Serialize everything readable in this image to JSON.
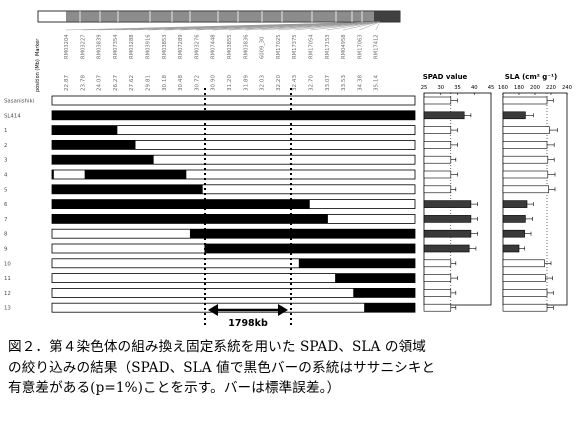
{
  "figure": {
    "side_labels": {
      "marker": "Marker",
      "position": "position (Mb)"
    },
    "markers": [
      {
        "name": "RM03204",
        "pos": "22.87"
      },
      {
        "name": "RM03227",
        "pos": "23.78"
      },
      {
        "name": "RM03839",
        "pos": "24.07"
      },
      {
        "name": "RM07354",
        "pos": "26.27"
      },
      {
        "name": "RM03288",
        "pos": "27.62"
      },
      {
        "name": "RM03916",
        "pos": "29.81"
      },
      {
        "name": "RM03853",
        "pos": "30.18"
      },
      {
        "name": "RM07289",
        "pos": "30.48"
      },
      {
        "name": "RM03276",
        "pos": "30.72"
      },
      {
        "name": "RM07448",
        "pos": "30.90"
      },
      {
        "name": "RM03855",
        "pos": "31.20"
      },
      {
        "name": "RM03836",
        "pos": "31.89"
      },
      {
        "name": "6009_30",
        "pos": "32.03"
      },
      {
        "name": "RM17025",
        "pos": "32.20"
      },
      {
        "name": "RM17375",
        "pos": "32.43"
      },
      {
        "name": "RM17054",
        "pos": "32.70"
      },
      {
        "name": "RM17153",
        "pos": "33.07"
      },
      {
        "name": "RM04958",
        "pos": "33.53"
      },
      {
        "name": "RM17063",
        "pos": "34.38"
      },
      {
        "name": "RM17412",
        "pos": "35.14"
      }
    ],
    "lines": [
      {
        "label": "Sasanishiki",
        "segments": [],
        "spad": 33,
        "spad_err": 2,
        "spad_sig": false,
        "sla": 215,
        "sla_err": 8,
        "sla_sig": false
      },
      {
        "label": "SL414",
        "segments": [
          [
            0,
            1
          ]
        ],
        "spad": 37,
        "spad_err": 2,
        "spad_sig": true,
        "sla": 188,
        "sla_err": 10,
        "sla_sig": true
      },
      {
        "label": "1",
        "segments": [
          [
            0,
            0.18
          ]
        ],
        "spad": 33,
        "spad_err": 2,
        "spad_sig": false,
        "sla": 218,
        "sla_err": 10,
        "sla_sig": false
      },
      {
        "label": "2",
        "segments": [
          [
            0,
            0.23
          ]
        ],
        "spad": 33,
        "spad_err": 2,
        "spad_sig": false,
        "sla": 215,
        "sla_err": 9,
        "sla_sig": false
      },
      {
        "label": "3",
        "segments": [
          [
            0,
            0.28
          ]
        ],
        "spad": 33,
        "spad_err": 1.5,
        "spad_sig": false,
        "sla": 216,
        "sla_err": 8,
        "sla_sig": false
      },
      {
        "label": "4",
        "segments": [
          [
            0,
            0.005
          ],
          [
            0.09,
            0.37
          ]
        ],
        "spad": 33,
        "spad_err": 2,
        "spad_sig": false,
        "sla": 216,
        "sla_err": 9,
        "sla_sig": false
      },
      {
        "label": "5",
        "segments": [
          [
            0,
            0.415
          ]
        ],
        "spad": 33,
        "spad_err": 1.5,
        "spad_sig": false,
        "sla": 217,
        "sla_err": 8,
        "sla_sig": false
      },
      {
        "label": "6",
        "segments": [
          [
            0,
            0.71
          ]
        ],
        "spad": 39,
        "spad_err": 2,
        "spad_sig": true,
        "sla": 190,
        "sla_err": 8,
        "sla_sig": true
      },
      {
        "label": "7",
        "segments": [
          [
            0,
            0.76
          ]
        ],
        "spad": 39,
        "spad_err": 2,
        "spad_sig": true,
        "sla": 188,
        "sla_err": 9,
        "sla_sig": true
      },
      {
        "label": "8",
        "segments": [
          [
            0.38,
            1
          ]
        ],
        "spad": 39,
        "spad_err": 2,
        "spad_sig": true,
        "sla": 187,
        "sla_err": 8,
        "sla_sig": true
      },
      {
        "label": "9",
        "segments": [
          [
            0.42,
            1
          ]
        ],
        "spad": 38.5,
        "spad_err": 2,
        "spad_sig": true,
        "sla": 180,
        "sla_err": 7,
        "sla_sig": true
      },
      {
        "label": "10",
        "segments": [
          [
            0.68,
            1
          ]
        ],
        "spad": 33,
        "spad_err": 1.5,
        "spad_sig": false,
        "sla": 212,
        "sla_err": 8,
        "sla_sig": false
      },
      {
        "label": "11",
        "segments": [
          [
            0.78,
            1
          ]
        ],
        "spad": 33,
        "spad_err": 2,
        "spad_sig": false,
        "sla": 213,
        "sla_err": 9,
        "sla_sig": false
      },
      {
        "label": "12",
        "segments": [
          [
            0.83,
            1
          ]
        ],
        "spad": 33,
        "spad_err": 1.5,
        "spad_sig": false,
        "sla": 215,
        "sla_err": 8,
        "sla_sig": false
      },
      {
        "label": "13",
        "segments": [
          [
            0.86,
            1
          ]
        ],
        "spad": 33,
        "spad_err": 1.5,
        "spad_sig": false,
        "sla": 215,
        "sla_err": 8,
        "sla_sig": false
      }
    ],
    "region_label": "1798kb",
    "spad_panel": {
      "title": "SPAD value",
      "ticks": [
        25,
        30,
        35,
        40,
        45
      ],
      "ref": 33
    },
    "sla_panel": {
      "title": "SLA (cm² g⁻¹)",
      "ticks": [
        160,
        180,
        200,
        220,
        240
      ],
      "ref": 215
    }
  },
  "caption": {
    "line1": "図２．第４染色体の組み換え固定系統を用いた SPAD、SLA の領域",
    "line2": "の絞り込みの結果（SPAD、SLA 値で黒色バーの系統はササニシキと",
    "line3": "有意差がある(p=1%)ことを示す。バーは標準誤差。）"
  },
  "colors": {
    "black_bar": "#000000",
    "sig_bar": "#3a3a3a",
    "white_bar": "#ffffff",
    "chrom_shade": "#8c8c8c"
  }
}
